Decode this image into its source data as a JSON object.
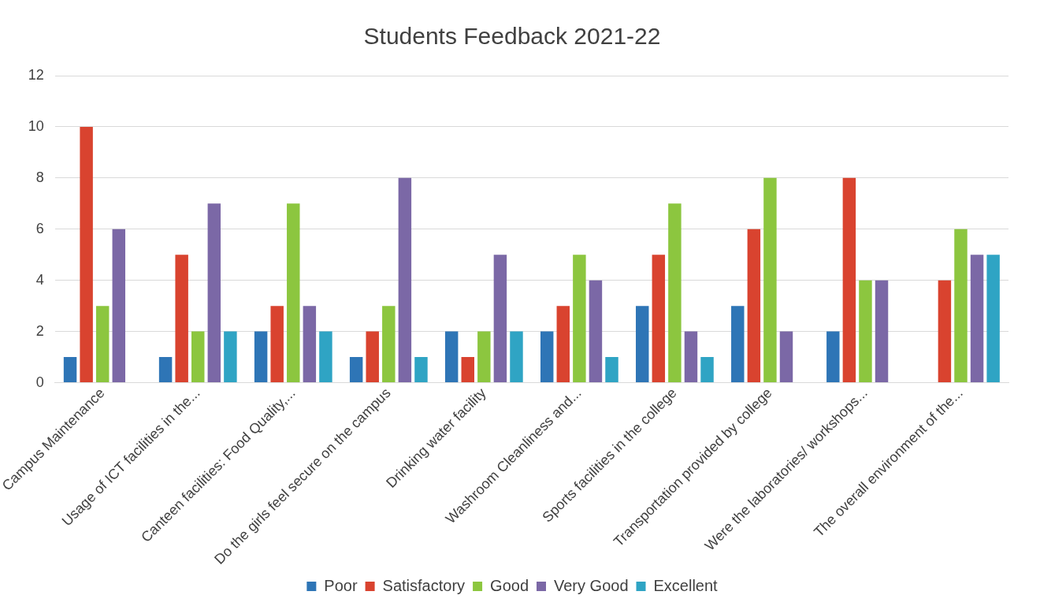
{
  "chart_data": {
    "type": "bar",
    "title": "Students Feedback 2021-22",
    "categories": [
      "Campus Maintenance",
      "Usage of ICT facilities in the...",
      "Canteen facilities: Food Quality,...",
      "Do the girls feel secure on the campus",
      "Drinking water facility",
      "Washroom Cleanliness and...",
      "Sports facilities in the college",
      "Transportation provided by college",
      "Were the laboratories/ workshops...",
      "The overall environment of the..."
    ],
    "series": [
      {
        "name": "Poor",
        "color": "#2e75b6",
        "values": [
          1,
          1,
          2,
          1,
          2,
          2,
          3,
          3,
          2,
          null
        ]
      },
      {
        "name": "Satisfactory",
        "color": "#d9432f",
        "values": [
          10,
          5,
          3,
          2,
          1,
          3,
          5,
          6,
          8,
          4
        ]
      },
      {
        "name": "Good",
        "color": "#8cc63f",
        "values": [
          3,
          2,
          7,
          3,
          2,
          5,
          7,
          8,
          4,
          6
        ]
      },
      {
        "name": "Very Good",
        "color": "#7b68a6",
        "values": [
          6,
          7,
          3,
          8,
          5,
          4,
          2,
          2,
          4,
          5
        ]
      },
      {
        "name": "Excellent",
        "color": "#2fa4c4",
        "values": [
          null,
          2,
          2,
          1,
          2,
          1,
          1,
          null,
          null,
          5
        ]
      }
    ],
    "ylim": [
      0,
      12
    ],
    "yticks": [
      0,
      2,
      4,
      6,
      8,
      10,
      12
    ],
    "grid": "y",
    "legend": "bottom"
  }
}
